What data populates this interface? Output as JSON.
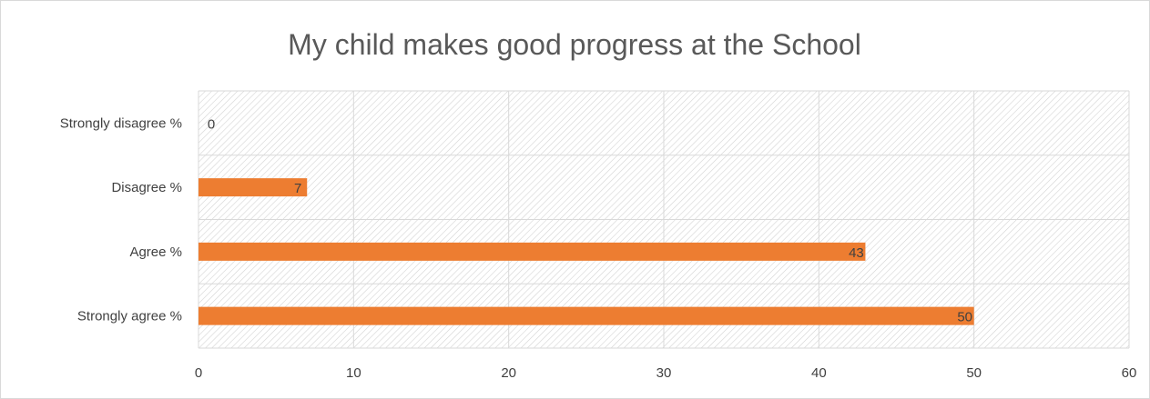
{
  "chart_data": {
    "type": "bar",
    "orientation": "horizontal",
    "title": "My child makes good progress at the School",
    "categories": [
      "Strongly disagree %",
      "Disagree %",
      "Agree %",
      "Strongly agree %"
    ],
    "values": [
      0,
      7,
      43,
      50
    ],
    "data_labels": [
      "0",
      "7",
      "43",
      "50"
    ],
    "xlim": [
      0,
      60
    ],
    "xticks": [
      0,
      10,
      20,
      30,
      40,
      50,
      60
    ],
    "xtick_labels": [
      "0",
      "10",
      "20",
      "30",
      "40",
      "50",
      "60"
    ],
    "grid": true,
    "legend": "none",
    "colors": {
      "bar": "#ED7D31",
      "grid": "#d9d9d9",
      "hatch": "#d0d0d0"
    }
  }
}
